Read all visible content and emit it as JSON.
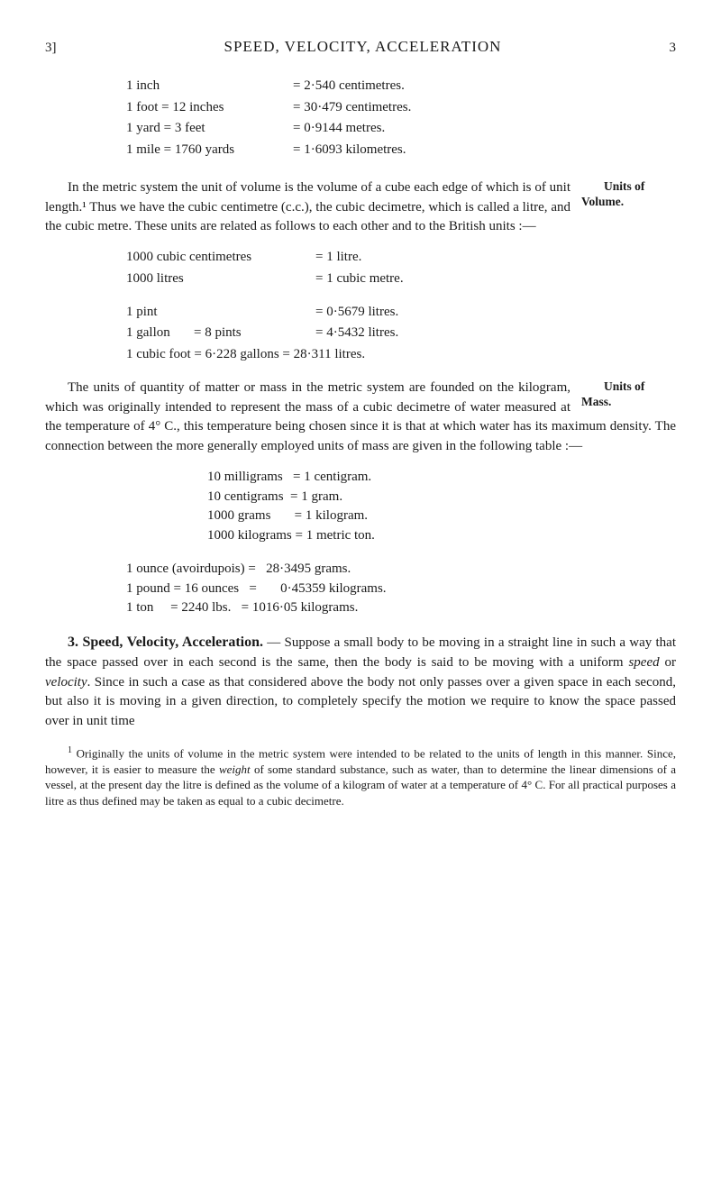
{
  "header": {
    "leftRef": "3]",
    "title": "SPEED, VELOCITY, ACCELERATION",
    "pageNum": "3"
  },
  "lengthConv": [
    {
      "l": "1 inch",
      "r": "= 2·540 centimetres."
    },
    {
      "l": "1 foot = 12 inches",
      "r": "= 30·479 centimetres."
    },
    {
      "l": "1 yard = 3 feet",
      "r": "= 0·9144 metres."
    },
    {
      "l": "1 mile = 1760 yards",
      "r": "= 1·6093 kilometres."
    }
  ],
  "para1": "In the metric system the unit of volume is the volume of a cube each edge of which is of unit length.¹ Thus we have the cubic centimetre (c.c.), the cubic decimetre, which is called a litre, and the cubic metre. These units are related as follows to each other and to the British units :—",
  "margin1": "Units of Volume.",
  "volConv1": [
    {
      "l": "1000 cubic centimetres",
      "r": "= 1 litre."
    },
    {
      "l": "1000 litres",
      "r": "= 1 cubic metre."
    }
  ],
  "volConv2": [
    {
      "l": "1 pint",
      "r": "= 0·5679 litres."
    },
    {
      "l": "1 gallon       = 8 pints",
      "r": "= 4·5432 litres."
    },
    {
      "l": "1 cubic foot = 6·228 gallons = 28·311 litres.",
      "r": ""
    }
  ],
  "para2": "The units of quantity of matter or mass in the metric system are founded on the kilogram, which was originally intended to represent the mass of a cubic decimetre of water measured at the temperature of 4° C., this temperature being chosen since it is that at which water has its maximum density. The connection between the more generally employed units of mass are given in the following table :—",
  "margin2": "Units of Mass.",
  "massConv": [
    "10 milligrams   = 1 centigram.",
    "10 centigrams  = 1 gram.",
    "1000 grams       = 1 kilogram.",
    "1000 kilograms = 1 metric ton."
  ],
  "ozConv": [
    "1 ounce (avoirdupois) =   28·3495 grams.",
    "1 pound = 16 ounces   =       0·45359 kilograms.",
    "1 ton     = 2240 lbs.   = 1016·05 kilograms."
  ],
  "sec3": {
    "title": "3. Speed, Velocity, Acceleration.",
    "text": " — Suppose a small body to be moving in a straight line in such a way that the space passed over in each second is the same, then the body is said to be moving with a uniform ",
    "speed": "speed",
    "text2": " or ",
    "velocity": "velocity",
    "text3": ". Since in such a case as that con­sidered above the body not only passes over a given space in each second, but also it is moving in a given direction, to completely specify the motion we require to know the space passed over in unit time"
  },
  "footnote": {
    "sup": "1",
    "text": " Originally the units of volume in the metric system were intended to be related to the units of length in this manner. Since, however, it is easier to measure the ",
    "weight": "weight",
    "text2": " of some standard substance, such as water, than to determine the linear dimensions of a vessel, at the present day the litre is defined as the volume of a kilogram of water at a temperature of 4° C. For all practical purposes a litre as thus defined may be taken as equal to a cubic decimetre."
  }
}
